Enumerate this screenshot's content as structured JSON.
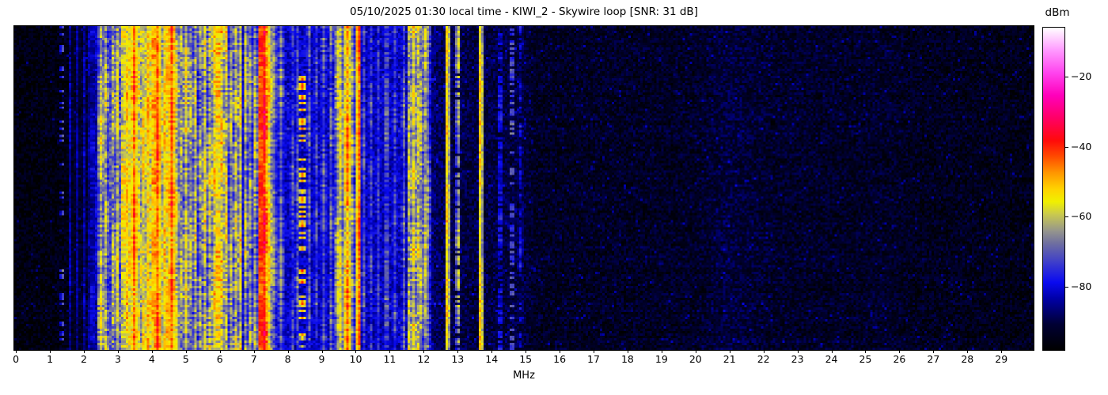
{
  "title": "05/10/2025 01:30 local time - KIWI_2 - Skywire loop [SNR: 31 dB]",
  "xlabel": "MHz",
  "colorbar": {
    "label": "dBm",
    "tick_values": [
      -20,
      -40,
      -60,
      -80
    ],
    "tick_labels": [
      "−20",
      "−40",
      "−60",
      "−80"
    ]
  },
  "chart_data": {
    "type": "heatmap",
    "title": "05/10/2025 01:30 local time - KIWI_2 - Skywire loop [SNR: 31 dB]",
    "xlabel": "MHz",
    "x_range": [
      -0.05,
      29.95
    ],
    "x_ticks": [
      "0",
      "1",
      "2",
      "3",
      "4",
      "5",
      "6",
      "7",
      "8",
      "9",
      "10",
      "11",
      "12",
      "13",
      "14",
      "15",
      "16",
      "17",
      "18",
      "19",
      "20",
      "21",
      "22",
      "23",
      "24",
      "25",
      "26",
      "27",
      "28",
      "29"
    ],
    "value_unit": "dBm",
    "value_range": [
      -98,
      -6
    ],
    "grid": false,
    "legend": "colorbar-right",
    "cols": 430,
    "rows": 137,
    "colormap": [
      [
        0.0,
        "#000000"
      ],
      [
        0.08,
        "#000034"
      ],
      [
        0.16,
        "#0000a8"
      ],
      [
        0.21,
        "#0a0af0"
      ],
      [
        0.27,
        "#3c3ccc"
      ],
      [
        0.33,
        "#6e6ea0"
      ],
      [
        0.37,
        "#96968c"
      ],
      [
        0.42,
        "#c8c850"
      ],
      [
        0.46,
        "#f0f000"
      ],
      [
        0.5,
        "#ffd200"
      ],
      [
        0.55,
        "#ff9600"
      ],
      [
        0.6,
        "#ff4b00"
      ],
      [
        0.65,
        "#ff0a0a"
      ],
      [
        0.72,
        "#ff0066"
      ],
      [
        0.79,
        "#ff00bb"
      ],
      [
        0.86,
        "#ff44ee"
      ],
      [
        0.93,
        "#ff9aff"
      ],
      [
        1.0,
        "#ffffff"
      ]
    ],
    "noise_floor_points_mhz_dbm": [
      [
        0,
        -96
      ],
      [
        1.2,
        -95.5
      ],
      [
        1.8,
        -94
      ],
      [
        2.3,
        -90
      ],
      [
        2.45,
        -83
      ],
      [
        2.6,
        -80
      ],
      [
        7.4,
        -80
      ],
      [
        7.9,
        -81.5
      ],
      [
        9.0,
        -82
      ],
      [
        11.9,
        -82.5
      ],
      [
        12.25,
        -87
      ],
      [
        12.6,
        -89
      ],
      [
        13.4,
        -90.5
      ],
      [
        14.9,
        -90
      ],
      [
        15.3,
        -93
      ],
      [
        20,
        -93
      ],
      [
        21,
        -90.5
      ],
      [
        22.3,
        -92.5
      ],
      [
        24.8,
        -93
      ],
      [
        25.4,
        -92.5
      ],
      [
        26.5,
        -93.5
      ],
      [
        30,
        -94.5
      ]
    ],
    "noise_jitter_db": 4.5,
    "sparkle_chance": 0.04,
    "sparkle_boost_db": 6,
    "signals_columns": [
      "mhz",
      "peak_dbm",
      "width_mhz",
      "variation_db",
      "presence",
      "y_start",
      "y_end"
    ],
    "signals": [
      [
        1.36,
        -71,
        0.05,
        3,
        0.3,
        0,
        1
      ],
      [
        1.62,
        -84,
        0.06,
        3,
        1,
        0,
        1
      ],
      [
        1.8,
        -85,
        0.06,
        3,
        1,
        0,
        1
      ],
      [
        2.0,
        -84,
        0.06,
        3,
        1,
        0,
        1
      ],
      [
        2.12,
        -85,
        0.06,
        3,
        1,
        0,
        1
      ],
      [
        2.25,
        -83,
        0.06,
        4,
        1,
        0,
        1
      ],
      [
        2.35,
        -82,
        0.06,
        4,
        1,
        0,
        1
      ],
      [
        2.5,
        -60,
        0.08,
        7,
        1,
        0,
        1
      ],
      [
        2.58,
        -67,
        0.07,
        6,
        1,
        0,
        1
      ],
      [
        2.66,
        -62,
        0.08,
        7,
        1,
        0,
        1
      ],
      [
        2.76,
        -72,
        0.07,
        6,
        1,
        0,
        1
      ],
      [
        2.87,
        -64,
        0.08,
        7,
        1,
        0,
        1
      ],
      [
        2.96,
        -60,
        0.08,
        7,
        1,
        0,
        1
      ],
      [
        3.06,
        -69,
        0.07,
        6,
        1,
        0,
        1
      ],
      [
        3.16,
        -58,
        0.08,
        7,
        1,
        0,
        1
      ],
      [
        3.27,
        -53,
        0.09,
        6,
        1,
        0,
        1
      ],
      [
        3.36,
        -58,
        0.07,
        7,
        1,
        0,
        1
      ],
      [
        3.48,
        -44,
        0.09,
        5,
        1,
        0,
        1
      ],
      [
        3.58,
        -59,
        0.08,
        7,
        1,
        0,
        1
      ],
      [
        3.68,
        -61,
        0.07,
        7,
        1,
        0,
        1
      ],
      [
        3.78,
        -56,
        0.08,
        7,
        1,
        0,
        1
      ],
      [
        3.88,
        -52,
        0.08,
        6,
        1,
        0,
        1
      ],
      [
        3.97,
        -56,
        0.08,
        7,
        1,
        0,
        1
      ],
      [
        4.07,
        -51,
        0.09,
        6,
        1,
        0,
        1
      ],
      [
        4.16,
        -43,
        0.09,
        5,
        1,
        0,
        1
      ],
      [
        4.27,
        -57,
        0.08,
        7,
        1,
        0,
        1
      ],
      [
        4.37,
        -53,
        0.08,
        6,
        1,
        0,
        1
      ],
      [
        4.48,
        -55,
        0.08,
        7,
        1,
        0,
        1
      ],
      [
        4.6,
        -43,
        0.09,
        5,
        1,
        0,
        1
      ],
      [
        4.74,
        -59,
        0.08,
        7,
        1,
        0,
        1
      ],
      [
        4.86,
        -63,
        0.07,
        7,
        1,
        0,
        1
      ],
      [
        5.0,
        -58,
        0.08,
        7,
        1,
        0,
        1
      ],
      [
        5.12,
        -63,
        0.07,
        7,
        1,
        0,
        1
      ],
      [
        5.26,
        -60,
        0.08,
        7,
        1,
        0,
        1
      ],
      [
        5.4,
        -65,
        0.07,
        7,
        1,
        0,
        1
      ],
      [
        5.55,
        -58,
        0.08,
        8,
        1,
        0,
        1
      ],
      [
        5.7,
        -61,
        0.07,
        8,
        1,
        0,
        1
      ],
      [
        5.85,
        -56,
        0.08,
        8,
        1,
        0,
        1
      ],
      [
        5.95,
        -54,
        0.09,
        7,
        1,
        0,
        1
      ],
      [
        6.07,
        -56,
        0.08,
        8,
        1,
        0,
        1
      ],
      [
        6.18,
        -58,
        0.08,
        8,
        1,
        0,
        1
      ],
      [
        6.31,
        -63,
        0.07,
        7,
        1,
        0,
        1
      ],
      [
        6.45,
        -60,
        0.08,
        7,
        1,
        0,
        1
      ],
      [
        6.6,
        -57,
        0.08,
        7,
        1,
        0,
        1
      ],
      [
        6.76,
        -61,
        0.07,
        7,
        1,
        0,
        1
      ],
      [
        6.92,
        -64,
        0.07,
        7,
        1,
        0,
        1
      ],
      [
        7.06,
        -62,
        0.07,
        7,
        1,
        0,
        1
      ],
      [
        7.21,
        -42,
        0.1,
        4,
        1,
        0,
        1
      ],
      [
        7.33,
        -38,
        0.1,
        6,
        1,
        0,
        1
      ],
      [
        7.45,
        -55,
        0.08,
        6,
        1,
        0,
        1
      ],
      [
        7.62,
        -66,
        0.07,
        6,
        1,
        0,
        1
      ],
      [
        7.8,
        -68,
        0.07,
        6,
        1,
        0,
        1
      ],
      [
        8.12,
        -73,
        0.07,
        6,
        1,
        0,
        1
      ],
      [
        8.28,
        -71,
        0.07,
        6,
        1,
        0,
        1
      ],
      [
        8.42,
        -48,
        0.07,
        6,
        0.5,
        0.15,
        1
      ],
      [
        8.62,
        -71,
        0.07,
        6,
        1,
        0,
        1
      ],
      [
        8.82,
        -73,
        0.07,
        6,
        1,
        0,
        1
      ],
      [
        9.05,
        -71,
        0.07,
        6,
        1,
        0,
        1
      ],
      [
        9.28,
        -69,
        0.07,
        6,
        1,
        0,
        1
      ],
      [
        9.46,
        -61,
        0.08,
        7,
        1,
        0,
        1
      ],
      [
        9.56,
        -57,
        0.08,
        7,
        1,
        0,
        1
      ],
      [
        9.68,
        -62,
        0.07,
        7,
        1,
        0,
        1
      ],
      [
        9.76,
        -47,
        0.08,
        6,
        1,
        0,
        1
      ],
      [
        9.9,
        -64,
        0.07,
        7,
        1,
        0,
        1
      ],
      [
        10.08,
        -44,
        0.07,
        4,
        1,
        0,
        1
      ],
      [
        10.22,
        -72,
        0.07,
        6,
        1,
        0,
        1
      ],
      [
        10.42,
        -74,
        0.07,
        6,
        1,
        0,
        1
      ],
      [
        10.65,
        -75,
        0.07,
        5,
        1,
        0,
        1
      ],
      [
        10.9,
        -73,
        0.07,
        6,
        1,
        0,
        1
      ],
      [
        11.15,
        -74,
        0.07,
        6,
        1,
        0,
        1
      ],
      [
        11.4,
        -71,
        0.07,
        6,
        1,
        0,
        1
      ],
      [
        11.58,
        -61,
        0.08,
        7,
        1,
        0,
        1
      ],
      [
        11.7,
        -57,
        0.09,
        7,
        1,
        0,
        1
      ],
      [
        11.82,
        -60,
        0.08,
        7,
        1,
        0,
        1
      ],
      [
        11.94,
        -63,
        0.08,
        7,
        1,
        0,
        1
      ],
      [
        12.05,
        -62,
        0.07,
        6,
        1,
        0,
        1
      ],
      [
        12.15,
        -68,
        0.07,
        6,
        1,
        0,
        1
      ],
      [
        12.7,
        -53,
        0.08,
        4,
        1,
        0,
        1
      ],
      [
        13.0,
        -63,
        0.06,
        6,
        0.85,
        0,
        1
      ],
      [
        13.68,
        -53,
        0.08,
        4,
        1,
        0,
        1
      ],
      [
        14.25,
        -79,
        0.06,
        4,
        0.7,
        0,
        1
      ],
      [
        14.6,
        -72,
        0.05,
        4,
        0.4,
        0,
        1
      ],
      [
        14.85,
        -80,
        0.06,
        4,
        0.6,
        0,
        1
      ]
    ]
  }
}
